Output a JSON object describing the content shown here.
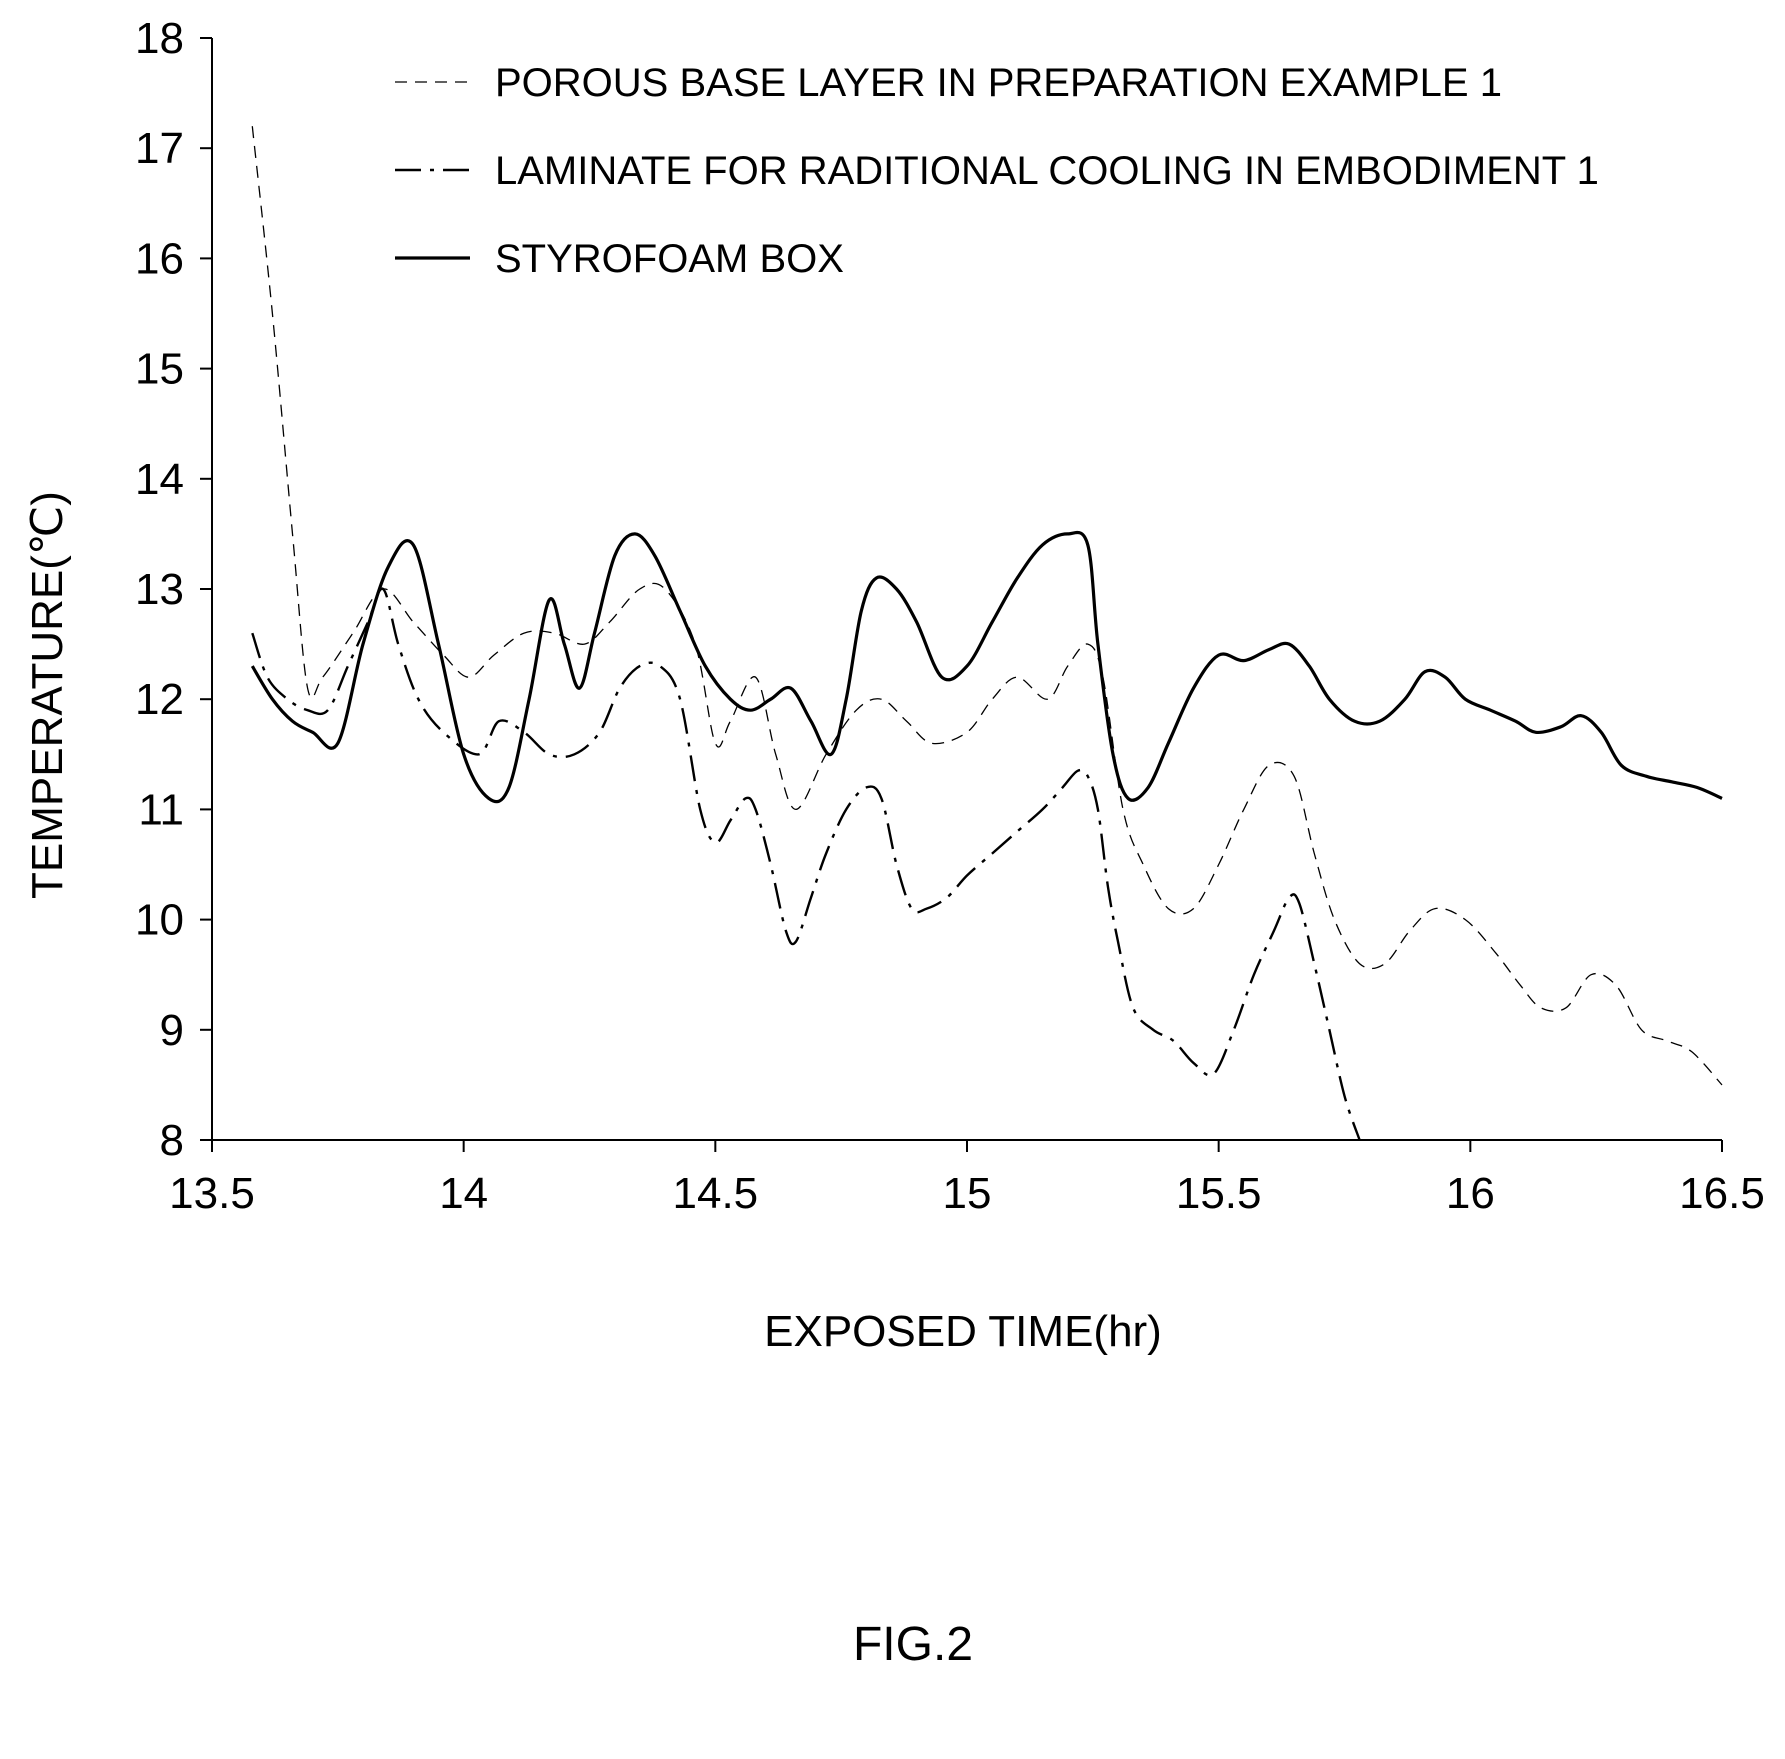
{
  "chart_data": {
    "type": "line",
    "xlabel": "EXPOSED TIME(hr)",
    "ylabel": "TEMPERATURE(℃)",
    "xlim": [
      13.5,
      16.5
    ],
    "ylim": [
      8,
      18
    ],
    "xticks": [
      13.5,
      14,
      14.5,
      15,
      15.5,
      16,
      16.5
    ],
    "xtick_labels": [
      "13.5",
      "14",
      "14.5",
      "15",
      "15.5",
      "16",
      "16.5"
    ],
    "yticks": [
      8,
      9,
      10,
      11,
      12,
      13,
      14,
      15,
      16,
      17,
      18
    ],
    "ytick_labels": [
      "8",
      "9",
      "10",
      "11",
      "12",
      "13",
      "14",
      "15",
      "16",
      "17",
      "18"
    ],
    "grid": false,
    "legend_position": "top",
    "series": [
      {
        "name": "POROUS BASE LAYER IN PREPARATION EXAMPLE 1",
        "style": "dashed-thin",
        "color": "#000000",
        "x": [
          13.58,
          13.62,
          13.66,
          13.69,
          13.72,
          13.78,
          13.84,
          13.9,
          13.96,
          14.01,
          14.06,
          14.12,
          14.18,
          14.24,
          14.29,
          14.35,
          14.4,
          14.46,
          14.5,
          14.53,
          14.58,
          14.62,
          14.66,
          14.72,
          14.78,
          14.83,
          14.88,
          14.93,
          15.0,
          15.05,
          15.1,
          15.16,
          15.2,
          15.24,
          15.27,
          15.31,
          15.35,
          15.4,
          15.45,
          15.5,
          15.55,
          15.6,
          15.65,
          15.69,
          15.73,
          15.78,
          15.83,
          15.88,
          15.93,
          15.99,
          16.05,
          16.1,
          16.14,
          16.19,
          16.24,
          16.29,
          16.34,
          16.39,
          16.44,
          16.5
        ],
        "y": [
          17.2,
          15.5,
          13.5,
          12.1,
          12.2,
          12.6,
          13.0,
          12.7,
          12.4,
          12.2,
          12.4,
          12.6,
          12.6,
          12.5,
          12.7,
          13.0,
          13.0,
          12.5,
          11.6,
          11.8,
          12.2,
          11.5,
          11.0,
          11.5,
          11.9,
          12.0,
          11.8,
          11.6,
          11.7,
          12.0,
          12.2,
          12.0,
          12.3,
          12.5,
          12.2,
          11.0,
          10.5,
          10.1,
          10.1,
          10.5,
          11.0,
          11.4,
          11.3,
          10.6,
          10.0,
          9.6,
          9.6,
          9.9,
          10.1,
          10.0,
          9.7,
          9.4,
          9.2,
          9.2,
          9.5,
          9.4,
          9.0,
          8.9,
          8.8,
          8.5
        ]
      },
      {
        "name": "LAMINATE FOR RADITIONAL COOLING IN EMBODIMENT 1",
        "style": "dash-dot",
        "color": "#000000",
        "x": [
          13.58,
          13.61,
          13.65,
          13.69,
          13.73,
          13.77,
          13.81,
          13.84,
          13.87,
          13.91,
          13.96,
          14.03,
          14.07,
          14.12,
          14.17,
          14.22,
          14.27,
          14.31,
          14.35,
          14.39,
          14.43,
          14.47,
          14.5,
          14.53,
          14.56,
          14.58,
          14.61,
          14.64,
          14.66,
          14.69,
          14.72,
          14.76,
          14.8,
          14.83,
          14.86,
          14.89,
          14.92,
          14.96,
          15.0,
          15.05,
          15.1,
          15.15,
          15.19,
          15.22,
          15.24,
          15.26,
          15.28,
          15.3,
          15.33,
          15.37,
          15.41,
          15.45,
          15.49,
          15.53,
          15.57,
          15.61,
          15.64,
          15.66,
          15.69,
          15.72,
          15.75,
          15.78
        ],
        "y": [
          12.6,
          12.2,
          12.0,
          11.9,
          11.9,
          12.3,
          12.7,
          13.0,
          12.5,
          12.0,
          11.7,
          11.5,
          11.8,
          11.7,
          11.5,
          11.5,
          11.7,
          12.1,
          12.3,
          12.3,
          12.0,
          11.0,
          10.7,
          10.9,
          11.1,
          11.0,
          10.5,
          9.9,
          9.8,
          10.2,
          10.6,
          11.0,
          11.2,
          11.1,
          10.5,
          10.1,
          10.1,
          10.2,
          10.4,
          10.6,
          10.8,
          11.0,
          11.2,
          11.35,
          11.3,
          11.0,
          10.3,
          9.8,
          9.2,
          9.0,
          8.9,
          8.7,
          8.6,
          9.0,
          9.5,
          9.9,
          10.2,
          10.15,
          9.6,
          9.0,
          8.4,
          8.0
        ]
      },
      {
        "name": "STYROFOAM BOX",
        "style": "solid",
        "color": "#000000",
        "x": [
          13.58,
          13.62,
          13.66,
          13.7,
          13.75,
          13.8,
          13.85,
          13.9,
          13.95,
          14.0,
          14.05,
          14.09,
          14.13,
          14.17,
          14.2,
          14.23,
          14.26,
          14.3,
          14.34,
          14.38,
          14.43,
          14.48,
          14.53,
          14.57,
          14.61,
          14.65,
          14.69,
          14.73,
          14.76,
          14.79,
          14.82,
          14.86,
          14.9,
          14.95,
          15.0,
          15.05,
          15.1,
          15.15,
          15.2,
          15.24,
          15.26,
          15.29,
          15.32,
          15.36,
          15.4,
          15.45,
          15.5,
          15.55,
          15.6,
          15.64,
          15.68,
          15.72,
          15.77,
          15.82,
          15.87,
          15.91,
          15.95,
          15.99,
          16.04,
          16.09,
          16.13,
          16.18,
          16.22,
          16.26,
          16.3,
          16.35,
          16.4,
          16.45,
          16.5
        ],
        "y": [
          12.3,
          12.0,
          11.8,
          11.7,
          11.6,
          12.5,
          13.2,
          13.4,
          12.5,
          11.5,
          11.1,
          11.2,
          12.0,
          12.9,
          12.5,
          12.1,
          12.6,
          13.3,
          13.5,
          13.3,
          12.8,
          12.3,
          12.0,
          11.9,
          12.0,
          12.1,
          11.8,
          11.5,
          12.0,
          12.8,
          13.1,
          13.0,
          12.7,
          12.2,
          12.3,
          12.7,
          13.1,
          13.4,
          13.5,
          13.4,
          12.5,
          11.5,
          11.1,
          11.2,
          11.6,
          12.1,
          12.4,
          12.35,
          12.45,
          12.5,
          12.3,
          12.0,
          11.8,
          11.8,
          12.0,
          12.25,
          12.2,
          12.0,
          11.9,
          11.8,
          11.7,
          11.75,
          11.85,
          11.7,
          11.4,
          11.3,
          11.25,
          11.2,
          11.1
        ]
      }
    ]
  },
  "figure_label": "FIG.2"
}
